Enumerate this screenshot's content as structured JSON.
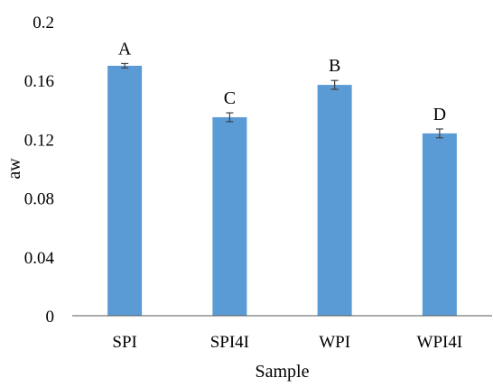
{
  "chart_data": {
    "type": "bar",
    "categories": [
      "SPI",
      "SPI4I",
      "WPI",
      "WPI4I"
    ],
    "values": [
      0.17,
      0.135,
      0.157,
      0.124
    ],
    "error": [
      0.0015,
      0.003,
      0.003,
      0.003
    ],
    "significance_letters": [
      "A",
      "C",
      "B",
      "D"
    ],
    "xlabel": "Sample",
    "ylabel": "aw",
    "ylim": [
      0,
      0.2
    ],
    "yticks": [
      "0",
      "0.04",
      "0.08",
      "0.12",
      "0.16",
      "0.2"
    ],
    "grid": false,
    "bar_color": "#5b9bd5",
    "error_color": "#404040",
    "axis_color": "#595959"
  }
}
